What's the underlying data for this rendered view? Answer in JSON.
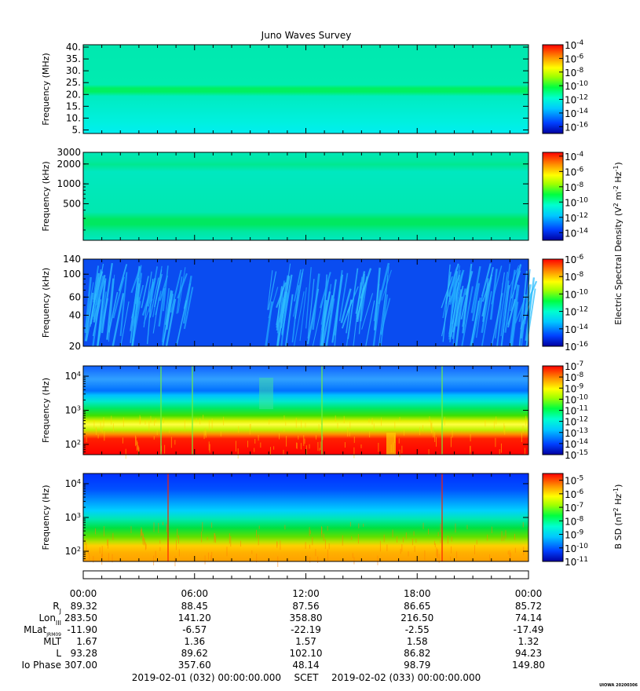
{
  "title": "Juno Waves Survey",
  "chart_data": {
    "type": "heatmap",
    "title": "Juno Waves Survey",
    "x_time_labels": [
      "00:00",
      "06:00",
      "12:00",
      "18:00",
      "00:00"
    ],
    "panels": [
      {
        "ylabel": "Frequency (MHz)",
        "yscale": "linear",
        "ylim": [
          3.5,
          41
        ],
        "yticks": [
          {
            "value": 5,
            "label": "5."
          },
          {
            "value": 10,
            "label": "10."
          },
          {
            "value": 15,
            "label": "15."
          },
          {
            "value": 20,
            "label": "20."
          },
          {
            "value": 25,
            "label": "25."
          },
          {
            "value": 30,
            "label": "30."
          },
          {
            "value": 35,
            "label": "35."
          },
          {
            "value": 40,
            "label": "40."
          }
        ],
        "colorbar": {
          "min_exp": -17,
          "max_exp": -4,
          "ticks": [
            {
              "exp": -4,
              "label": "10",
              "sup": "-4"
            },
            {
              "exp": -6,
              "label": "10",
              "sup": "-6"
            },
            {
              "exp": -8,
              "label": "10",
              "sup": "-8"
            },
            {
              "exp": -10,
              "label": "10",
              "sup": "-10"
            },
            {
              "exp": -12,
              "label": "10",
              "sup": "-12"
            },
            {
              "exp": -14,
              "label": "10",
              "sup": "-14"
            },
            {
              "exp": -16,
              "label": "10",
              "sup": "-16"
            }
          ]
        }
      },
      {
        "ylabel": "Frequency (kHz)",
        "yscale": "log",
        "ylim": [
          140,
          3000
        ],
        "yticks": [
          {
            "value": 500,
            "label": "500"
          },
          {
            "value": 1000,
            "label": "1000"
          },
          {
            "value": 2000,
            "label": "2000"
          },
          {
            "value": 3000,
            "label": "3000"
          }
        ],
        "colorbar": {
          "min_exp": -15,
          "max_exp": -3.5,
          "ticks": [
            {
              "exp": -4,
              "label": "10",
              "sup": "-4"
            },
            {
              "exp": -6,
              "label": "10",
              "sup": "-6"
            },
            {
              "exp": -8,
              "label": "10",
              "sup": "-8"
            },
            {
              "exp": -10,
              "label": "10",
              "sup": "-10"
            },
            {
              "exp": -12,
              "label": "10",
              "sup": "-12"
            },
            {
              "exp": -14,
              "label": "10",
              "sup": "-14"
            }
          ]
        }
      },
      {
        "ylabel": "Frequency (kHz)",
        "yscale": "log",
        "ylim": [
          20,
          140
        ],
        "yticks": [
          {
            "value": 20,
            "label": "20"
          },
          {
            "value": 40,
            "label": "40"
          },
          {
            "value": 60,
            "label": "60"
          },
          {
            "value": 100,
            "label": "100"
          },
          {
            "value": 140,
            "label": "140"
          }
        ],
        "colorbar": {
          "min_exp": -16,
          "max_exp": -6,
          "ticks": [
            {
              "exp": -6,
              "label": "10",
              "sup": "-6"
            },
            {
              "exp": -8,
              "label": "10",
              "sup": "-8"
            },
            {
              "exp": -10,
              "label": "10",
              "sup": "-10"
            },
            {
              "exp": -12,
              "label": "10",
              "sup": "-12"
            },
            {
              "exp": -14,
              "label": "10",
              "sup": "-14"
            },
            {
              "exp": -16,
              "label": "10",
              "sup": "-16"
            }
          ]
        }
      },
      {
        "ylabel": "Frequency (Hz)",
        "yscale": "log",
        "ylim": [
          50,
          20000
        ],
        "yticks": [
          {
            "value": 100,
            "label": "10",
            "sup": "2"
          },
          {
            "value": 1000,
            "label": "10",
            "sup": "3"
          },
          {
            "value": 10000,
            "label": "10",
            "sup": "4"
          }
        ],
        "colorbar": {
          "min_exp": -15,
          "max_exp": -7,
          "ticks": [
            {
              "exp": -7,
              "label": "10",
              "sup": "-7"
            },
            {
              "exp": -8,
              "label": "10",
              "sup": "-8"
            },
            {
              "exp": -9,
              "label": "10",
              "sup": "-9"
            },
            {
              "exp": -10,
              "label": "10",
              "sup": "-10"
            },
            {
              "exp": -11,
              "label": "10",
              "sup": "-11"
            },
            {
              "exp": -12,
              "label": "10",
              "sup": "-12"
            },
            {
              "exp": -13,
              "label": "10",
              "sup": "-13"
            },
            {
              "exp": -14,
              "label": "10",
              "sup": "-14"
            },
            {
              "exp": -15,
              "label": "10",
              "sup": "-15"
            }
          ]
        }
      },
      {
        "ylabel": "Frequency (Hz)",
        "yscale": "log",
        "ylim": [
          50,
          20000
        ],
        "yticks": [
          {
            "value": 100,
            "label": "10",
            "sup": "2"
          },
          {
            "value": 1000,
            "label": "10",
            "sup": "3"
          },
          {
            "value": 10000,
            "label": "10",
            "sup": "4"
          }
        ],
        "colorbar": {
          "min_exp": -11,
          "max_exp": -4.5,
          "ticks": [
            {
              "exp": -5,
              "label": "10",
              "sup": "-5"
            },
            {
              "exp": -6,
              "label": "10",
              "sup": "-6"
            },
            {
              "exp": -7,
              "label": "10",
              "sup": "-7"
            },
            {
              "exp": -8,
              "label": "10",
              "sup": "-8"
            },
            {
              "exp": -9,
              "label": "10",
              "sup": "-9"
            },
            {
              "exp": -10,
              "label": "10",
              "sup": "-10"
            },
            {
              "exp": -11,
              "label": "10",
              "sup": "-11"
            }
          ]
        }
      }
    ],
    "colorbar_labels": {
      "electric": "Electric Spectral Density (V",
      "electric_sup1": "2",
      "electric_mid": " m",
      "electric_sup2": "-2",
      "electric_mid2": " Hz",
      "electric_sup3": "-1",
      "electric_end": ")",
      "magnetic": "B SD (nT",
      "magnetic_sup1": "2",
      "magnetic_mid": " Hz",
      "magnetic_sup2": "-1",
      "magnetic_end": ")"
    },
    "ephemeris": {
      "rows": [
        {
          "label": "R",
          "sub": "J",
          "values": [
            "89.32",
            "88.45",
            "87.56",
            "86.65",
            "85.72"
          ]
        },
        {
          "label": "Lon",
          "sub": "III",
          "values": [
            "283.50",
            "141.20",
            "358.80",
            "216.50",
            "74.14"
          ]
        },
        {
          "label": "MLat",
          "sub": "JRM09",
          "values": [
            "-11.90",
            "-6.57",
            "-22.19",
            "-2.55",
            "-17.49"
          ]
        },
        {
          "label": "MLT",
          "sub": "",
          "values": [
            "1.67",
            "1.36",
            "1.57",
            "1.58",
            "1.32"
          ]
        },
        {
          "label": "L",
          "sub": "",
          "values": [
            "93.28",
            "89.62",
            "102.10",
            "86.82",
            "94.23"
          ]
        },
        {
          "label": "Io Phase",
          "sub": "",
          "values": [
            "307.00",
            "357.60",
            "48.14",
            "98.79",
            "149.80"
          ]
        }
      ]
    },
    "time_range": {
      "start": "2019-02-01 (032) 00:00:00.000",
      "label": "SCET",
      "end": "2019-02-02 (033) 00:00:00.000"
    },
    "footer_tag": "UIOWA 20200306"
  }
}
